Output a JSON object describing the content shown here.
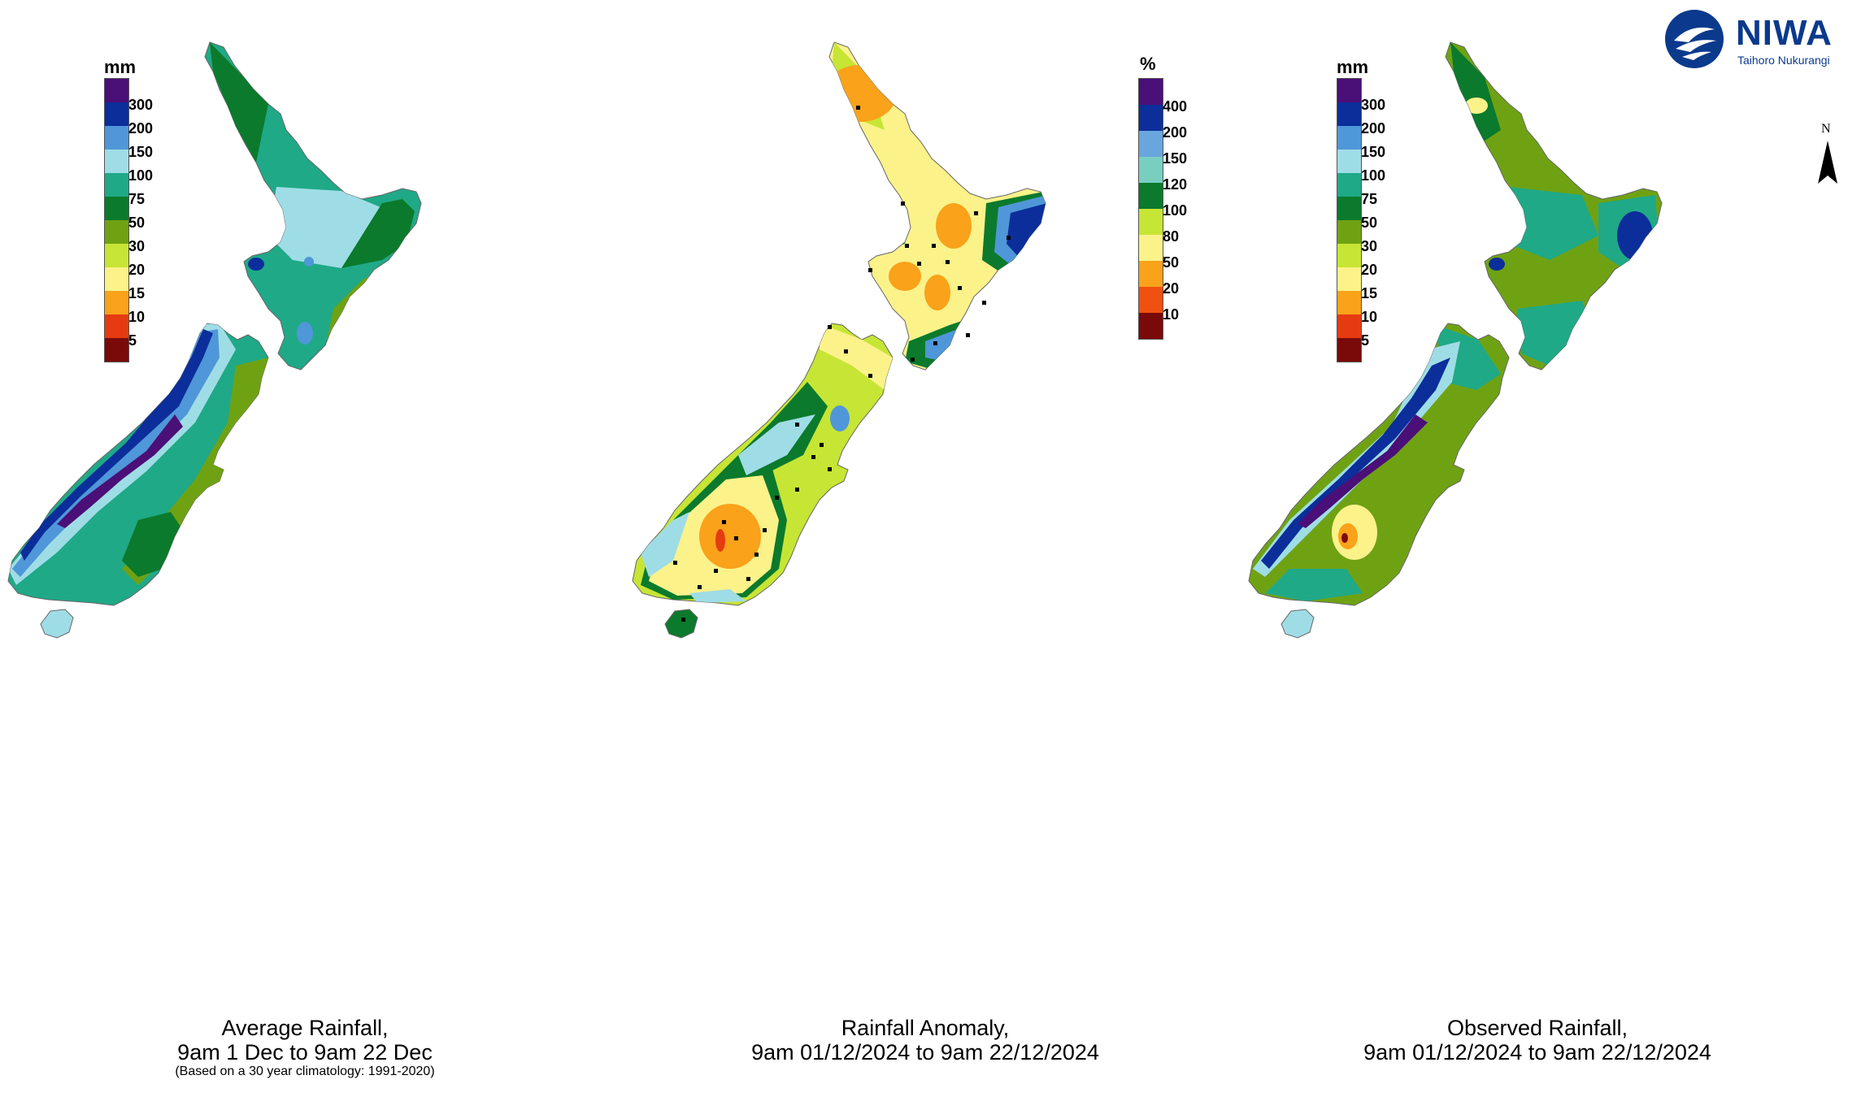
{
  "logo": {
    "name": "NIWA",
    "tagline": "Taihoro Nukurangi"
  },
  "north_label": "N",
  "panels": [
    {
      "id": "average",
      "legend_unit": "mm",
      "legend_ticks": [
        "300",
        "200",
        "150",
        "100",
        "75",
        "50",
        "30",
        "20",
        "15",
        "10",
        "5"
      ],
      "legend_colors": [
        "#4b0f78",
        "#0b2e9a",
        "#4f97d8",
        "#9fdde6",
        "#1fa987",
        "#0b7a2c",
        "#6fa213",
        "#c7e534",
        "#fbf28a",
        "#f9a21a",
        "#e63b10",
        "#7a0a0a"
      ],
      "caption_line1": "Average Rainfall,",
      "caption_line2": "9am 1 Dec to 9am 22 Dec",
      "caption_note": "(Based on a 30 year climatology: 1991-2020)"
    },
    {
      "id": "anomaly",
      "legend_unit": "%",
      "legend_ticks": [
        "400",
        "200",
        "150",
        "120",
        "100",
        "80",
        "50",
        "20",
        "10"
      ],
      "legend_colors": [
        "#4b0f78",
        "#0b2e9a",
        "#69a6de",
        "#78cfc0",
        "#0b7a2c",
        "#c7e534",
        "#fbf28a",
        "#f9a21a",
        "#f05010",
        "#7a0a0a"
      ],
      "caption_line1": "Rainfall Anomaly,",
      "caption_line2": "9am 01/12/2024 to 9am 22/12/2024",
      "caption_note": ""
    },
    {
      "id": "observed",
      "legend_unit": "mm",
      "legend_ticks": [
        "300",
        "200",
        "150",
        "100",
        "75",
        "50",
        "30",
        "20",
        "15",
        "10",
        "5"
      ],
      "legend_colors": [
        "#4b0f78",
        "#0b2e9a",
        "#4f97d8",
        "#9fdde6",
        "#1fa987",
        "#0b7a2c",
        "#6fa213",
        "#c7e534",
        "#fbf28a",
        "#f9a21a",
        "#e63b10",
        "#7a0a0a"
      ],
      "caption_line1": "Observed Rainfall,",
      "caption_line2": "9am 01/12/2024 to 9am 22/12/2024",
      "caption_note": ""
    }
  ]
}
